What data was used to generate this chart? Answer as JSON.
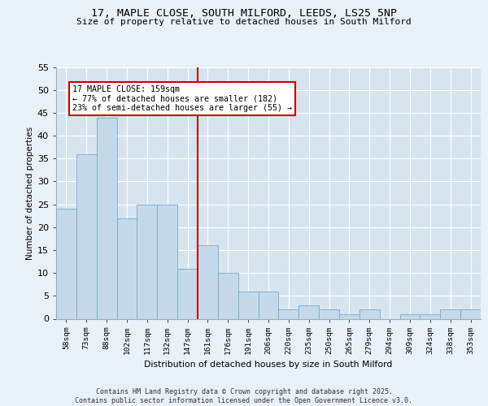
{
  "title1": "17, MAPLE CLOSE, SOUTH MILFORD, LEEDS, LS25 5NP",
  "title2": "Size of property relative to detached houses in South Milford",
  "xlabel": "Distribution of detached houses by size in South Milford",
  "ylabel": "Number of detached properties",
  "categories": [
    "58sqm",
    "73sqm",
    "88sqm",
    "102sqm",
    "117sqm",
    "132sqm",
    "147sqm",
    "161sqm",
    "176sqm",
    "191sqm",
    "206sqm",
    "220sqm",
    "235sqm",
    "250sqm",
    "265sqm",
    "279sqm",
    "294sqm",
    "309sqm",
    "324sqm",
    "338sqm",
    "353sqm"
  ],
  "values": [
    24,
    36,
    44,
    22,
    25,
    25,
    11,
    16,
    10,
    6,
    6,
    2,
    3,
    2,
    1,
    2,
    0,
    1,
    1,
    2,
    2
  ],
  "bar_color": "#c5d8ea",
  "bar_edge_color": "#7aaac8",
  "ref_line_index": 7,
  "annotation_text": "17 MAPLE CLOSE: 159sqm\n← 77% of detached houses are smaller (182)\n23% of semi-detached houses are larger (55) →",
  "annotation_box_facecolor": "#ffffff",
  "annotation_box_edgecolor": "#cc0000",
  "grid_color": "#ffffff",
  "plot_bg_color": "#d6e4f0",
  "fig_bg_color": "#e8f0f8",
  "footer_text": "Contains HM Land Registry data © Crown copyright and database right 2025.\nContains public sector information licensed under the Open Government Licence v3.0.",
  "ylim_max": 55,
  "yticks": [
    0,
    5,
    10,
    15,
    20,
    25,
    30,
    35,
    40,
    45,
    50,
    55
  ]
}
